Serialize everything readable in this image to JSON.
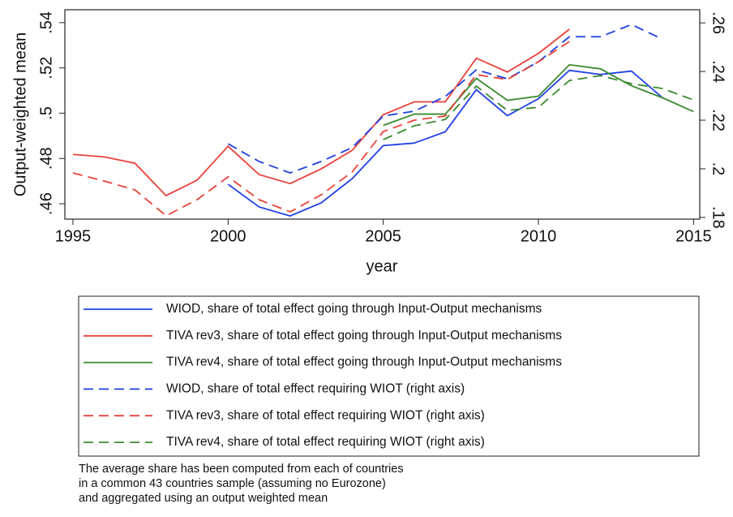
{
  "chart_data": {
    "type": "line",
    "y_label": "Output-weighted mean",
    "x_label": "year",
    "x": [
      1995,
      1996,
      1997,
      1998,
      1999,
      2000,
      2001,
      2002,
      2003,
      2004,
      2005,
      2006,
      2007,
      2008,
      2009,
      2010,
      2011,
      2012,
      2013,
      2014,
      2015
    ],
    "xlim": [
      1994.74,
      2015.2
    ],
    "xticks": [
      1995,
      2000,
      2005,
      2010,
      2015
    ],
    "ylim": [
      0.4532,
      0.5457
    ],
    "yticks": [
      {
        "value": 0.46,
        "label": ".46"
      },
      {
        "value": 0.48,
        "label": ".48"
      },
      {
        "value": 0.5,
        "label": ".5"
      },
      {
        "value": 0.52,
        "label": ".52"
      },
      {
        "value": 0.54,
        "label": ".54"
      }
    ],
    "y2lim": [
      0.1793,
      0.2654
    ],
    "y2ticks": [
      {
        "value": 0.18,
        "label": ".18"
      },
      {
        "value": 0.2,
        "label": ".2"
      },
      {
        "value": 0.22,
        "label": ".22"
      },
      {
        "value": 0.24,
        "label": ".24"
      },
      {
        "value": 0.26,
        "label": ".26"
      }
    ],
    "series": [
      {
        "name": "WIOD, share of total effect going through Input-Output mechanisms",
        "color": "#1f3fe6",
        "dashed": false,
        "values": [
          null,
          null,
          null,
          null,
          null,
          0.4686,
          0.4586,
          0.4546,
          0.4604,
          0.4711,
          0.4857,
          0.4868,
          0.4918,
          0.5104,
          0.4989,
          0.5064,
          0.5189,
          0.5171,
          0.5186,
          0.5068,
          null
        ]
      },
      {
        "name": "TIVA rev3, share of total effect going through Input-Output mechanisms",
        "color": "#e8423a",
        "dashed": false,
        "values": [
          0.4818,
          0.4807,
          0.4779,
          0.4636,
          0.4704,
          0.4854,
          0.4729,
          0.4689,
          0.4754,
          0.4836,
          0.4993,
          0.505,
          0.505,
          0.5243,
          0.5182,
          0.5264,
          0.5371,
          null,
          null,
          null,
          null
        ]
      },
      {
        "name": "TIVA rev4, share of total effect going through Input-Output mechanisms",
        "color": "#3a8a2e",
        "dashed": false,
        "values": [
          null,
          null,
          null,
          null,
          null,
          null,
          null,
          null,
          null,
          null,
          0.4946,
          0.4996,
          0.4996,
          0.5154,
          0.5057,
          0.5075,
          0.5214,
          0.5196,
          0.5121,
          0.5068,
          0.5007
        ]
      },
      {
        "name": "WIOD, share of total effect requiring WIOT (right axis)",
        "color": "#1f3fe6",
        "dashed": true,
        "axis": "y2",
        "values": [
          null,
          null,
          null,
          null,
          null,
          0.2103,
          0.203,
          0.1983,
          0.203,
          0.2087,
          0.2217,
          0.2237,
          0.2297,
          0.2407,
          0.237,
          0.244,
          0.2543,
          0.2543,
          0.2593,
          0.2533,
          null
        ]
      },
      {
        "name": "TIVA rev3, share of total effect requiring WIOT (right axis)",
        "color": "#e8423a",
        "dashed": true,
        "axis": "y2",
        "values": [
          0.1983,
          0.195,
          0.1913,
          0.1807,
          0.1873,
          0.1967,
          0.1873,
          0.1823,
          0.1893,
          0.1987,
          0.2153,
          0.22,
          0.2217,
          0.2387,
          0.2367,
          0.244,
          0.2523,
          null,
          null,
          null,
          null
        ]
      },
      {
        "name": "TIVA rev4, share of total effect requiring WIOT (right axis)",
        "color": "#3a8a2e",
        "dashed": true,
        "axis": "y2",
        "values": [
          null,
          null,
          null,
          null,
          null,
          null,
          null,
          null,
          null,
          null,
          0.212,
          0.2177,
          0.2203,
          0.234,
          0.224,
          0.2253,
          0.2363,
          0.2383,
          0.235,
          0.233,
          0.2283
        ]
      }
    ],
    "note": [
      "The average share has been computed from each of countries",
      "in a common 43 countries sample (assuming no Eurozone)",
      "and aggregated using an output weighted mean"
    ]
  }
}
